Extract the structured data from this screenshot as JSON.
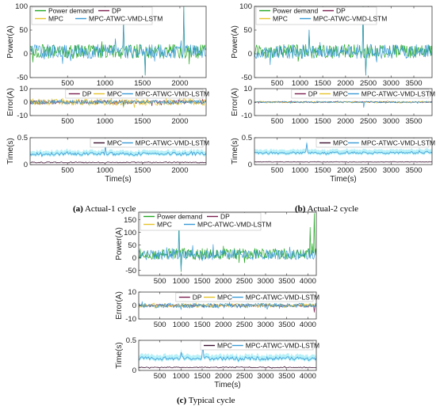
{
  "colors": {
    "power_demand": "#22a722",
    "dp": "#7b1f4f",
    "mpc": "#e6c229",
    "atwc": "#3a9bd6",
    "atwc_fill": "#7ee6f2",
    "mpc_time": "#3b1030",
    "axis": "#3a3a3a",
    "grid_frame": "#8c8c8c"
  },
  "captions": {
    "a_label": "(a)",
    "a_text": " Actual-1 cycle",
    "b_label": "(b)",
    "b_text": " Actual-2 cycle",
    "c_label": "(c)",
    "c_text": " Typical cycle"
  },
  "chart_data": [
    {
      "id": "a-power",
      "type": "line",
      "ylabel": "Power(A)",
      "xlabel": "",
      "xlim": [
        0,
        2350
      ],
      "ylim": [
        -50,
        100
      ],
      "xticks": [
        500,
        1000,
        1500,
        2000
      ],
      "yticks": [
        -50,
        0,
        50,
        100
      ],
      "legend": [
        "Power demand",
        "DP",
        "MPC",
        "MPC-ATWC-VMD-LSTM"
      ],
      "series": [
        {
          "name": "Power demand",
          "amp": 15,
          "offset": 5,
          "spikes": [
            [
              1250,
              70
            ],
            [
              1540,
              -45
            ],
            [
              2050,
              100
            ]
          ]
        },
        {
          "name": "MPC-ATWC-VMD-LSTM",
          "amp": 15,
          "offset": 5,
          "spikes": [
            [
              1250,
              70
            ],
            [
              1540,
              -45
            ],
            [
              2050,
              100
            ]
          ]
        }
      ]
    },
    {
      "id": "a-error",
      "type": "line",
      "ylabel": "Error(A)",
      "xlabel": "",
      "xlim": [
        0,
        2350
      ],
      "ylim": [
        -10,
        10
      ],
      "xticks": [
        500,
        1000,
        1500,
        2000
      ],
      "yticks": [
        -10,
        0,
        10
      ],
      "legend": [
        "DP",
        "MPC",
        "MPC-ATWC-VMD-LSTM"
      ],
      "series": [
        {
          "name": "DP",
          "amp": 1.5,
          "offset": 0,
          "spikes": []
        },
        {
          "name": "MPC",
          "amp": 2.5,
          "offset": 0,
          "spikes": [
            [
              1250,
              -4
            ],
            [
              2050,
              4
            ]
          ]
        },
        {
          "name": "MPC-ATWC-VMD-LSTM",
          "amp": 1.5,
          "offset": 0,
          "spikes": [
            [
              1250,
              -3
            ]
          ]
        }
      ]
    },
    {
      "id": "a-time",
      "type": "line",
      "ylabel": "Time(s)",
      "xlabel": "Time(s)",
      "xlim": [
        0,
        2350
      ],
      "ylim": [
        0,
        0.5
      ],
      "xticks": [
        500,
        1000,
        1500,
        2000
      ],
      "yticks": [
        0,
        0.5
      ],
      "legend": [
        "MPC",
        "MPC-ATWC-VMD-LSTM"
      ],
      "series": [
        {
          "name": "MPC",
          "amp": 0.01,
          "offset": 0.04,
          "spikes": []
        },
        {
          "name": "MPC-ATWC-VMD-LSTM",
          "amp": 0.03,
          "offset": 0.2,
          "spikes": [
            [
              1000,
              0.35
            ]
          ]
        }
      ]
    },
    {
      "id": "b-power",
      "type": "line",
      "ylabel": "Power(A)",
      "xlabel": "",
      "xlim": [
        0,
        3900
      ],
      "ylim": [
        -50,
        100
      ],
      "xticks": [
        500,
        1000,
        1500,
        2000,
        2500,
        3000,
        3500
      ],
      "yticks": [
        -50,
        0,
        50,
        100
      ],
      "legend": [
        "Power demand",
        "DP",
        "MPC",
        "MPC-ATWC-VMD-LSTM"
      ],
      "series": [
        {
          "name": "Power demand",
          "amp": 15,
          "offset": 5,
          "spikes": [
            [
              2380,
              100
            ],
            [
              2450,
              -45
            ],
            [
              1200,
              50
            ]
          ]
        },
        {
          "name": "MPC-ATWC-VMD-LSTM",
          "amp": 15,
          "offset": 5,
          "spikes": [
            [
              2380,
              100
            ],
            [
              2450,
              -45
            ],
            [
              1200,
              50
            ]
          ]
        }
      ]
    },
    {
      "id": "b-error",
      "type": "line",
      "ylabel": "Error(A)",
      "xlabel": "",
      "xlim": [
        0,
        3900
      ],
      "ylim": [
        -10,
        10
      ],
      "xticks": [
        500,
        1000,
        1500,
        2000,
        2500,
        3000,
        3500
      ],
      "yticks": [
        -10,
        0,
        10
      ],
      "legend": [
        "DP",
        "MPC",
        "MPC-ATWC-VMD-LSTM"
      ],
      "series": [
        {
          "name": "DP",
          "amp": 0.5,
          "offset": 0,
          "spikes": []
        },
        {
          "name": "MPC",
          "amp": 0.7,
          "offset": 0,
          "spikes": []
        },
        {
          "name": "MPC-ATWC-VMD-LSTM",
          "amp": 0.6,
          "offset": 0,
          "spikes": [
            [
              2400,
              -4
            ]
          ]
        }
      ]
    },
    {
      "id": "b-time",
      "type": "line",
      "ylabel": "Time(s)",
      "xlabel": "Time(s)",
      "xlim": [
        0,
        3900
      ],
      "ylim": [
        0,
        0.5
      ],
      "xticks": [
        500,
        1000,
        1500,
        2000,
        2500,
        3000,
        3500
      ],
      "yticks": [
        0,
        0.5
      ],
      "legend": [
        "MPC",
        "MPC-ATWC-VMD-LSTM"
      ],
      "series": [
        {
          "name": "MPC",
          "amp": 0.005,
          "offset": 0.05,
          "spikes": []
        },
        {
          "name": "MPC-ATWC-VMD-LSTM",
          "amp": 0.02,
          "offset": 0.22,
          "spikes": [
            [
              1150,
              0.4
            ]
          ]
        }
      ]
    },
    {
      "id": "c-power",
      "type": "line",
      "ylabel": "Power(A)",
      "xlabel": "",
      "xlim": [
        0,
        4200
      ],
      "ylim": [
        -70,
        180
      ],
      "xticks": [
        500,
        1000,
        1500,
        2000,
        2500,
        3000,
        3500,
        4000
      ],
      "yticks": [
        -50,
        0,
        50,
        100,
        150
      ],
      "legend": [
        "Power demand",
        "DP",
        "MPC",
        "MPC-ATWC-VMD-LSTM"
      ],
      "series": [
        {
          "name": "Power demand",
          "amp": 22,
          "offset": 15,
          "spikes": [
            [
              950,
              150
            ],
            [
              1000,
              -55
            ],
            [
              4050,
              120
            ],
            [
              4150,
              175
            ]
          ]
        },
        {
          "name": "MPC-ATWC-VMD-LSTM",
          "amp": 20,
          "offset": 12,
          "spikes": [
            [
              950,
              120
            ],
            [
              1000,
              -50
            ]
          ]
        }
      ]
    },
    {
      "id": "c-error",
      "type": "line",
      "ylabel": "Error(A)",
      "xlabel": "",
      "xlim": [
        0,
        4200
      ],
      "ylim": [
        -10,
        10
      ],
      "xticks": [
        500,
        1000,
        1500,
        2000,
        2500,
        3000,
        3500,
        4000
      ],
      "yticks": [
        -10,
        0,
        10
      ],
      "legend": [
        "DP",
        "MPC",
        "MPC-ATWC-VMD-LSTM"
      ],
      "series": [
        {
          "name": "DP",
          "amp": 1.0,
          "offset": 0,
          "spikes": [
            [
              4150,
              -5
            ]
          ]
        },
        {
          "name": "MPC",
          "amp": 1.5,
          "offset": 0,
          "spikes": []
        },
        {
          "name": "MPC-ATWC-VMD-LSTM",
          "amp": 1.8,
          "offset": 0,
          "spikes": [
            [
              1000,
              -3
            ]
          ]
        }
      ]
    },
    {
      "id": "c-time",
      "type": "line",
      "ylabel": "Time(s)",
      "xlabel": "Time(s)",
      "xlim": [
        0,
        4200
      ],
      "ylim": [
        0,
        0.5
      ],
      "xticks": [
        500,
        1000,
        1500,
        2000,
        2500,
        3000,
        3500,
        4000
      ],
      "yticks": [
        0,
        0.5
      ],
      "legend": [
        "MPC",
        "MPC-ATWC-VMD-LSTM"
      ],
      "series": [
        {
          "name": "MPC",
          "amp": 0.008,
          "offset": 0.05,
          "spikes": []
        },
        {
          "name": "MPC-ATWC-VMD-LSTM",
          "amp": 0.03,
          "offset": 0.2,
          "spikes": [
            [
              1520,
              0.45
            ],
            [
              1000,
              0.3
            ]
          ]
        }
      ]
    }
  ]
}
